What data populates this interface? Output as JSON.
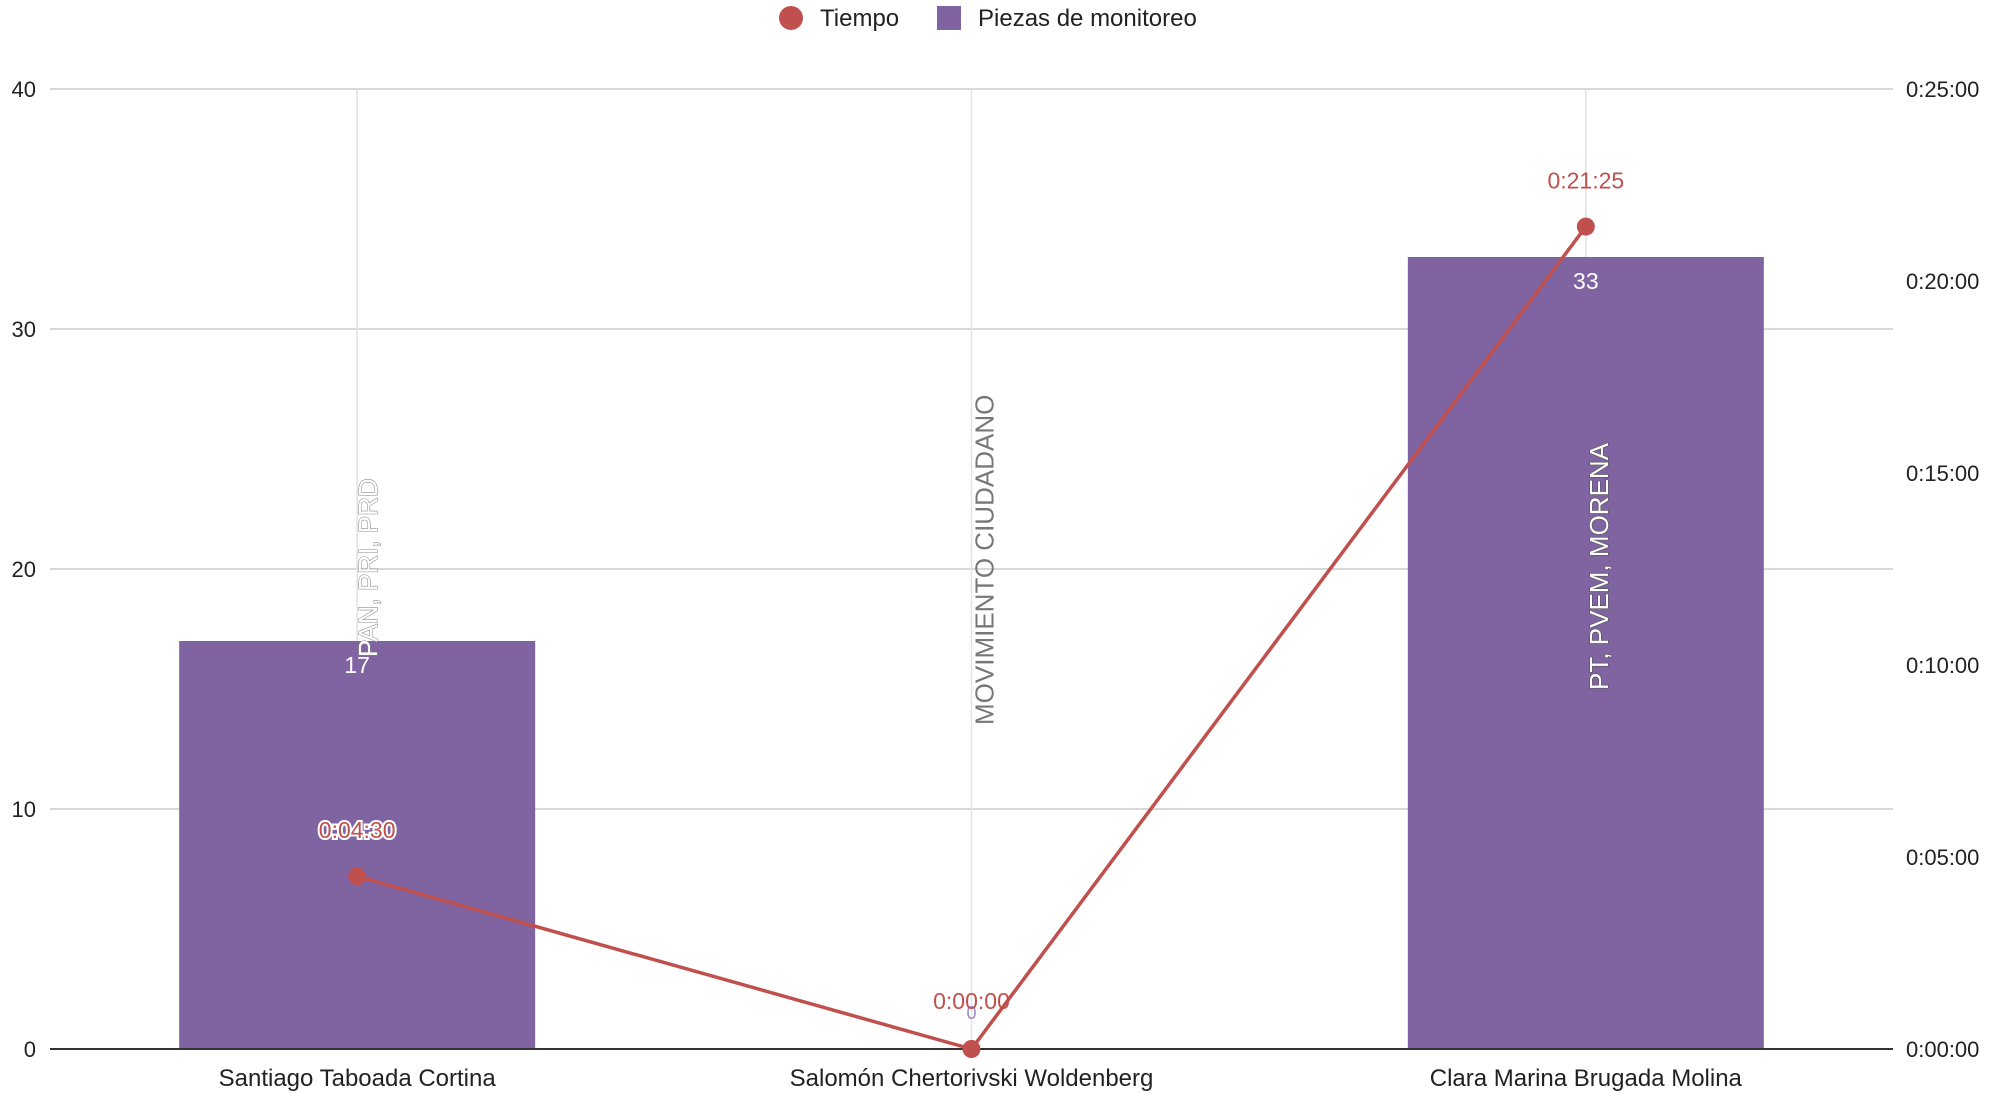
{
  "chart_data": {
    "type": "bar",
    "categories": [
      "Santiago Taboada Cortina",
      "Salomón Chertorivski Woldenberg",
      "Clara Marina Brugada Molina"
    ],
    "series": [
      {
        "name": "Piezas de monitoreo",
        "kind": "bar",
        "axis": "left",
        "color": "#8064a2",
        "values": [
          17,
          0,
          33
        ],
        "value_labels": [
          "17",
          "0",
          "33"
        ]
      },
      {
        "name": "Tiempo",
        "kind": "line",
        "axis": "right",
        "color": "#c0504d",
        "values": [
          "0:04:30",
          "0:00:00",
          "0:21:25"
        ],
        "value_labels": [
          "0:04:30",
          "0:00:00",
          "0:21:25"
        ]
      }
    ],
    "annotations": [
      "PAN, PRI, PRD",
      "MOVIMIENTO CIUDADANO",
      "PT, PVEM, MORENA"
    ],
    "y_left": {
      "ylim": [
        0,
        40
      ],
      "ticks": [
        "0",
        "10",
        "20",
        "30",
        "40"
      ]
    },
    "y_right": {
      "ylim": [
        "0:00:00",
        "0:25:00"
      ],
      "ticks": [
        "0:00:00",
        "0:05:00",
        "0:10:00",
        "0:15:00",
        "0:20:00",
        "0:25:00"
      ]
    },
    "legend_position": "top-center",
    "grid": true,
    "title": "",
    "xlabel": "",
    "ylabel": ""
  }
}
